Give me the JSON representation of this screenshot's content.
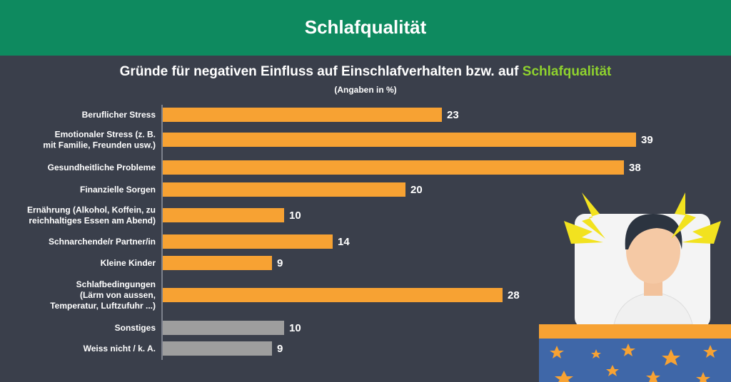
{
  "header": "Schlafqualität",
  "chart_data": {
    "type": "bar",
    "orientation": "horizontal",
    "title": "Gründe für negativen Einfluss auf Einschlafverhalten bzw. auf",
    "title_highlight": "Schlafqualität",
    "subtitle": "(Angaben in %)",
    "categories": [
      [
        "Beruflicher Stress"
      ],
      [
        "Emotionaler Stress (z. B.",
        "mit Familie, Freunden usw.)"
      ],
      [
        "Gesundheitliche Probleme"
      ],
      [
        "Finanzielle Sorgen"
      ],
      [
        "Ernährung (Alkohol, Koffein, zu",
        "reichhaltiges Essen am Abend)"
      ],
      [
        "Schnarchende/r Partner/in"
      ],
      [
        "Kleine Kinder"
      ],
      [
        "Schlafbedingungen",
        "(Lärm von aussen,",
        "Temperatur, Luftzufuhr ...)"
      ],
      [
        "Sonstiges"
      ],
      [
        "Weiss nicht / k. A."
      ]
    ],
    "values": [
      23,
      39,
      38,
      20,
      10,
      14,
      9,
      28,
      10,
      9
    ],
    "colors": [
      "#f7a233",
      "#f7a233",
      "#f7a233",
      "#f7a233",
      "#f7a233",
      "#f7a233",
      "#f7a233",
      "#f7a233",
      "#9e9e9e",
      "#9e9e9e"
    ]
  }
}
